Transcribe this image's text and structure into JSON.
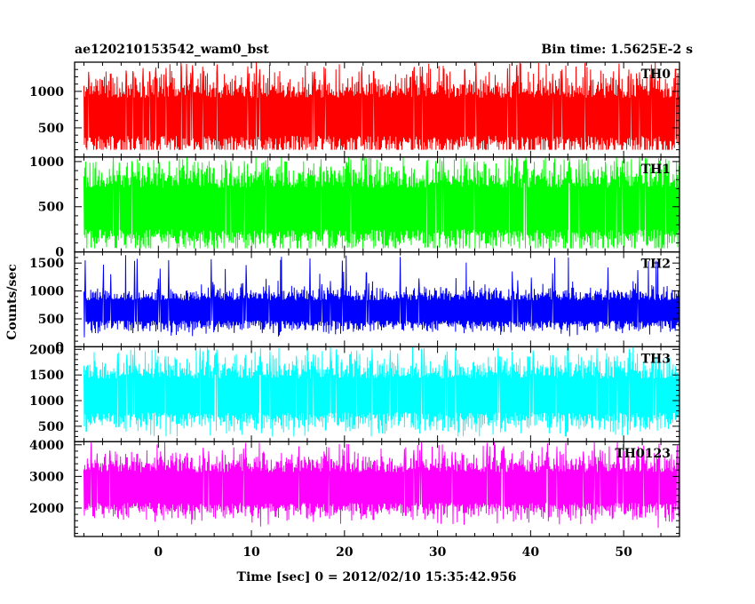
{
  "chart_data": {
    "type": "line",
    "title_left": "ae120210153542_wam0_bst",
    "title_right": "Bin time: 1.5625E-2 s",
    "xlabel": "Time [sec] 0 = 2012/02/10 15:35:42.956",
    "ylabel": "Counts/sec",
    "x_range": [
      -9,
      56
    ],
    "data_x_range": [
      -8,
      56
    ],
    "x_ticks": [
      0,
      10,
      20,
      30,
      40,
      50
    ],
    "panels": [
      {
        "name": "TH0",
        "color": "#ff0000",
        "ylim": [
          100,
          1400
        ],
        "y_ticks": [
          500,
          1000
        ],
        "center": 650,
        "spread": 260,
        "min": 200,
        "max": 1400,
        "spike_max": 1400
      },
      {
        "name": "TH1",
        "color": "#00ff00",
        "ylim": [
          0,
          1050
        ],
        "y_ticks": [
          0,
          500,
          1000
        ],
        "center": 480,
        "spread": 230,
        "min": 40,
        "max": 1050,
        "spike_max": 1050
      },
      {
        "name": "TH2",
        "color": "#0000ff",
        "ylim": [
          0,
          1700
        ],
        "y_ticks": [
          0,
          500,
          1000,
          1500
        ],
        "center": 650,
        "spread": 180,
        "min": 20,
        "max": 1650,
        "spike_max": 1650
      },
      {
        "name": "TH3",
        "color": "#00ffff",
        "ylim": [
          200,
          2050
        ],
        "y_ticks": [
          500,
          1000,
          1500,
          2000
        ],
        "center": 1100,
        "spread": 330,
        "min": 300,
        "max": 2050,
        "spike_max": 2050
      },
      {
        "name": "TH0123",
        "color": "#ff00ff",
        "ylim": [
          1100,
          4100
        ],
        "y_ticks": [
          2000,
          3000,
          4000
        ],
        "center": 2650,
        "spread": 480,
        "min": 1300,
        "max": 4100,
        "spike_max": 4100
      }
    ]
  }
}
